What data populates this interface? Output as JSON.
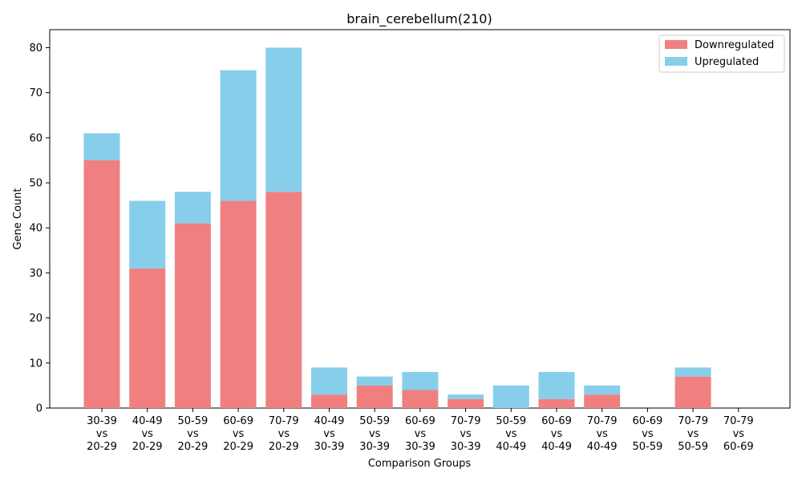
{
  "chart_data": {
    "type": "bar",
    "stacked": true,
    "title": "brain_cerebellum(210)",
    "xlabel": "Comparison Groups",
    "ylabel": "Gene Count",
    "ylim": [
      0,
      84
    ],
    "yticks": [
      "0",
      "10",
      "20",
      "30",
      "40",
      "50",
      "60",
      "70",
      "80"
    ],
    "categories": [
      "30-39\nvs\n20-29",
      "40-49\nvs\n20-29",
      "50-59\nvs\n20-29",
      "60-69\nvs\n20-29",
      "70-79\nvs\n20-29",
      "40-49\nvs\n30-39",
      "50-59\nvs\n30-39",
      "60-69\nvs\n30-39",
      "70-79\nvs\n30-39",
      "50-59\nvs\n40-49",
      "60-69\nvs\n40-49",
      "70-79\nvs\n40-49",
      "60-69\nvs\n50-59",
      "70-79\nvs\n50-59",
      "70-79\nvs\n60-69"
    ],
    "series": [
      {
        "name": "Downregulated",
        "color": "#f08080",
        "values": [
          55,
          31,
          41,
          46,
          48,
          3,
          5,
          4,
          2,
          0,
          2,
          3,
          0,
          7,
          0
        ]
      },
      {
        "name": "Upregulated",
        "color": "#87ceeb",
        "values": [
          6,
          15,
          7,
          29,
          32,
          6,
          2,
          4,
          1,
          5,
          6,
          2,
          0,
          2,
          0
        ]
      }
    ],
    "legend_position": "top-right",
    "grid": false
  }
}
